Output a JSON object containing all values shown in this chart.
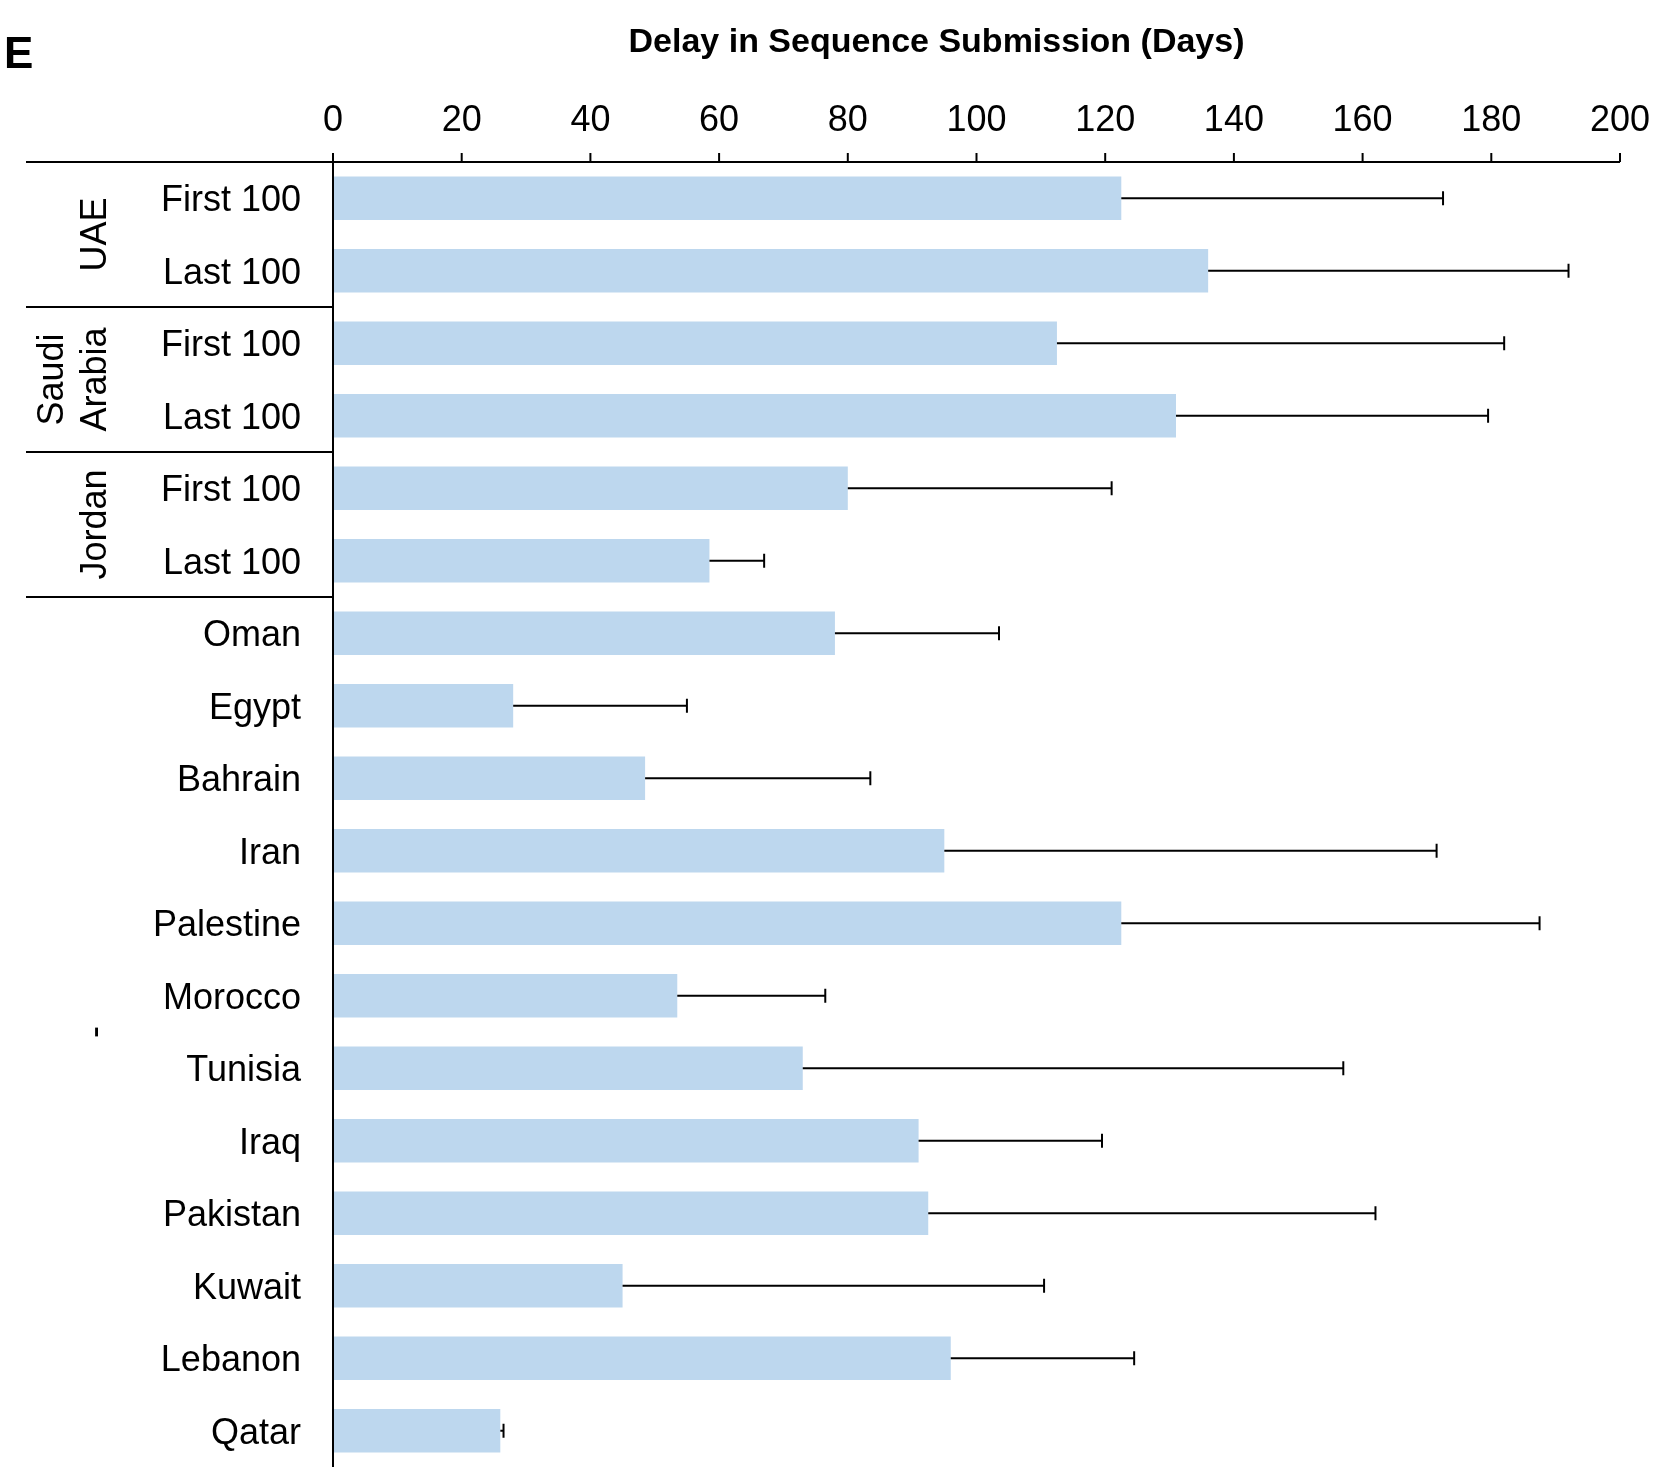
{
  "chart_data": {
    "type": "bar",
    "orientation": "horizontal",
    "title": "E",
    "xlabel": "Delay in Sequence Submission (Days)",
    "categories": [
      "First 100",
      "Last 100",
      "First 100",
      "Last 100",
      "First 100",
      "Last 100",
      "Oman",
      "Egypt",
      "Bahrain",
      "Iran",
      "Palestine",
      "Morocco",
      "Tunisia",
      "Iraq",
      "Pakistan",
      "Kuwait",
      "Lebanon",
      "Qatar"
    ],
    "values": [
      122.5,
      136,
      112.5,
      131,
      80,
      58.5,
      78,
      28,
      48.5,
      95,
      122.5,
      53.5,
      73,
      91,
      92.5,
      45,
      96,
      26
    ],
    "errors": [
      [
        122.5,
        172.5
      ],
      [
        136,
        192
      ],
      [
        112.5,
        182
      ],
      [
        131,
        179.5
      ],
      [
        80,
        121
      ],
      [
        58.5,
        67
      ],
      [
        78,
        103.5
      ],
      [
        28,
        55
      ],
      [
        48.5,
        83.5
      ],
      [
        95,
        171.5
      ],
      [
        122.5,
        187.5
      ],
      [
        53.5,
        76.5
      ],
      [
        73,
        157
      ],
      [
        91,
        119.5
      ],
      [
        92.5,
        162
      ],
      [
        45,
        110.5
      ],
      [
        96,
        124.5
      ],
      [
        26,
        26.5
      ]
    ],
    "color": "#bdd7ee",
    "xlim": [
      0,
      200
    ],
    "xticks": [
      0,
      20,
      40,
      60,
      80,
      100,
      120,
      140,
      160,
      180,
      200
    ],
    "annotations": [
      "UAE",
      "Saudi Arabia",
      "Jordan",
      "-"
    ]
  }
}
